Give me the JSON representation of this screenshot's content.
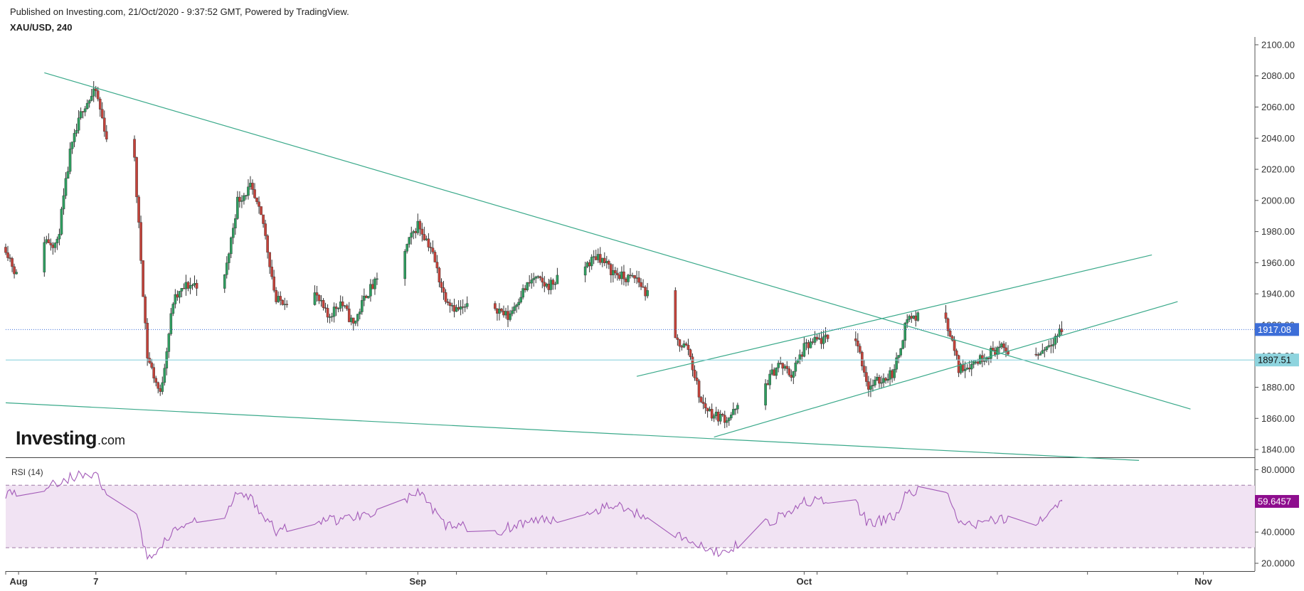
{
  "header": {
    "published": "Published on Investing.com, 21/Oct/2020 - 9:37:52 GMT, Powered by TradingView.",
    "symbol": "XAU/USD, 240"
  },
  "logo": {
    "main": "Investing",
    "suffix": ".com"
  },
  "colors": {
    "up_candle": "#2e9d5f",
    "down_candle": "#c4423a",
    "trendline": "#3aa98a",
    "price_tag": "#3d6ed8",
    "level_tag": "#8ed4de",
    "level_line": "#8ed4de",
    "rsi_line": "#a35bb8",
    "rsi_band": "#f1e3f3",
    "rsi_tag": "#8e0e8e"
  },
  "chart_data": [
    {
      "type": "candlestick",
      "title": "XAU/USD, 240",
      "ylim": [
        1835,
        2105
      ],
      "y_ticks": [
        "2100.00",
        "2080.00",
        "2060.00",
        "2040.00",
        "2020.00",
        "2000.00",
        "1980.00",
        "1960.00",
        "1940.00",
        "1920.00",
        "1900.00",
        "1880.00",
        "1860.00",
        "1840.00"
      ],
      "x_labels": [
        "Aug",
        "7",
        "Sep",
        "Oct",
        "Nov"
      ],
      "x_label_dates": [
        "2020-08-01",
        "2020-08-07",
        "2020-09-01",
        "2020-10-01",
        "2020-11-01"
      ],
      "last_price": "1917.08",
      "horizontal_level": "1897.51",
      "close_path_points": [
        [
          "2020-07-31",
          1970
        ],
        [
          "2020-08-01",
          1948
        ],
        [
          "2020-08-03",
          1975
        ],
        [
          "2020-08-04",
          1972
        ],
        [
          "2020-08-05",
          2030
        ],
        [
          "2020-08-06",
          2060
        ],
        [
          "2020-08-07",
          2070
        ],
        [
          "2020-08-08",
          2035
        ],
        [
          "2020-08-10",
          2025
        ],
        [
          "2020-08-11",
          1900
        ],
        [
          "2020-08-12",
          1875
        ],
        [
          "2020-08-13",
          1935
        ],
        [
          "2020-08-14",
          1945
        ],
        [
          "2020-08-17",
          1950
        ],
        [
          "2020-08-18",
          2000
        ],
        [
          "2020-08-19",
          2008
        ],
        [
          "2020-08-20",
          1985
        ],
        [
          "2020-08-21",
          1935
        ],
        [
          "2020-08-24",
          1940
        ],
        [
          "2020-08-25",
          1925
        ],
        [
          "2020-08-26",
          1935
        ],
        [
          "2020-08-27",
          1920
        ],
        [
          "2020-08-28",
          1940
        ],
        [
          "2020-08-31",
          1968
        ],
        [
          "2020-09-01",
          1985
        ],
        [
          "2020-09-02",
          1970
        ],
        [
          "2020-09-03",
          1940
        ],
        [
          "2020-09-04",
          1930
        ],
        [
          "2020-09-07",
          1932
        ],
        [
          "2020-09-08",
          1925
        ],
        [
          "2020-09-09",
          1940
        ],
        [
          "2020-09-10",
          1950
        ],
        [
          "2020-09-11",
          1945
        ],
        [
          "2020-09-14",
          1958
        ],
        [
          "2020-09-15",
          1965
        ],
        [
          "2020-09-16",
          1955
        ],
        [
          "2020-09-17",
          1950
        ],
        [
          "2020-09-18",
          1950
        ],
        [
          "2020-09-21",
          1910
        ],
        [
          "2020-09-22",
          1905
        ],
        [
          "2020-09-23",
          1870
        ],
        [
          "2020-09-24",
          1862
        ],
        [
          "2020-09-25",
          1860
        ],
        [
          "2020-09-28",
          1882
        ],
        [
          "2020-09-29",
          1895
        ],
        [
          "2020-09-30",
          1888
        ],
        [
          "2020-10-01",
          1905
        ],
        [
          "2020-10-02",
          1910
        ],
        [
          "2020-10-05",
          1912
        ],
        [
          "2020-10-06",
          1880
        ],
        [
          "2020-10-07",
          1885
        ],
        [
          "2020-10-08",
          1890
        ],
        [
          "2020-10-09",
          1925
        ],
        [
          "2020-10-12",
          1925
        ],
        [
          "2020-10-13",
          1892
        ],
        [
          "2020-10-14",
          1895
        ],
        [
          "2020-10-15",
          1900
        ],
        [
          "2020-10-16",
          1905
        ],
        [
          "2020-10-19",
          1900
        ],
        [
          "2020-10-20",
          1908
        ],
        [
          "2020-10-21",
          1917
        ]
      ]
    },
    {
      "type": "line",
      "title": "RSI (14)",
      "ylim": [
        15,
        87
      ],
      "y_ticks": [
        "80.0000",
        "60.0000",
        "40.0000",
        "20.0000"
      ],
      "band": [
        30,
        70
      ],
      "last_value": "59.6457",
      "points": [
        [
          "2020-07-31",
          65
        ],
        [
          "2020-08-03",
          68
        ],
        [
          "2020-08-05",
          75
        ],
        [
          "2020-08-07",
          78
        ],
        [
          "2020-08-08",
          60
        ],
        [
          "2020-08-10",
          55
        ],
        [
          "2020-08-11",
          22
        ],
        [
          "2020-08-13",
          40
        ],
        [
          "2020-08-14",
          45
        ],
        [
          "2020-08-17",
          50
        ],
        [
          "2020-08-18",
          65
        ],
        [
          "2020-08-19",
          62
        ],
        [
          "2020-08-21",
          40
        ],
        [
          "2020-08-24",
          48
        ],
        [
          "2020-08-26",
          48
        ],
        [
          "2020-08-28",
          52
        ],
        [
          "2020-08-31",
          60
        ],
        [
          "2020-09-01",
          66
        ],
        [
          "2020-09-03",
          45
        ],
        [
          "2020-09-07",
          40
        ],
        [
          "2020-09-09",
          46
        ],
        [
          "2020-09-11",
          48
        ],
        [
          "2020-09-14",
          52
        ],
        [
          "2020-09-16",
          58
        ],
        [
          "2020-09-18",
          52
        ],
        [
          "2020-09-21",
          40
        ],
        [
          "2020-09-23",
          30
        ],
        [
          "2020-09-24",
          27
        ],
        [
          "2020-09-25",
          28
        ],
        [
          "2020-09-28",
          45
        ],
        [
          "2020-09-30",
          55
        ],
        [
          "2020-10-01",
          60
        ],
        [
          "2020-10-05",
          58
        ],
        [
          "2020-10-06",
          45
        ],
        [
          "2020-10-08",
          50
        ],
        [
          "2020-10-09",
          65
        ],
        [
          "2020-10-12",
          68
        ],
        [
          "2020-10-13",
          44
        ],
        [
          "2020-10-15",
          46
        ],
        [
          "2020-10-16",
          48
        ],
        [
          "2020-10-19",
          45
        ],
        [
          "2020-10-20",
          52
        ],
        [
          "2020-10-21",
          59.6457
        ]
      ]
    }
  ],
  "trendlines": [
    {
      "name": "falling-resistance",
      "points": [
        [
          "2020-08-03",
          2082
        ],
        [
          "2020-10-31",
          1866
        ]
      ]
    },
    {
      "name": "falling-support",
      "points": [
        [
          "2020-07-31",
          1870
        ],
        [
          "2020-10-27",
          1833
        ]
      ]
    },
    {
      "name": "upper-channel",
      "points": [
        [
          "2020-09-18",
          1887
        ],
        [
          "2020-10-28",
          1965
        ]
      ]
    },
    {
      "name": "lower-channel",
      "points": [
        [
          "2020-09-24",
          1848
        ],
        [
          "2020-10-30",
          1935
        ]
      ]
    }
  ],
  "rsi_label": "RSI (14)"
}
